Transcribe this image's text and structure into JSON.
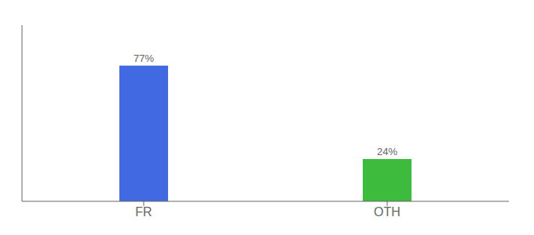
{
  "chart_data": {
    "type": "bar",
    "categories": [
      "FR",
      "OTH"
    ],
    "values": [
      77,
      24
    ],
    "colors": [
      "#4169e1",
      "#3dbb3d"
    ],
    "value_labels": [
      "77%",
      "24%"
    ],
    "data_labels": true,
    "ylim": [
      0,
      100
    ],
    "tick_labels": "x"
  }
}
